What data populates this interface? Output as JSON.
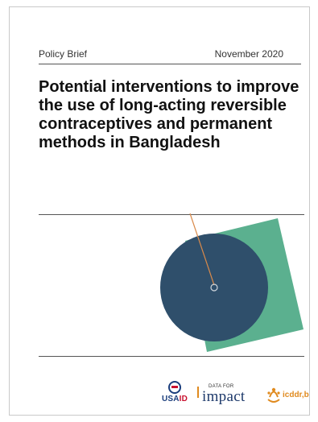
{
  "header": {
    "series_label": "Policy Brief",
    "date": "November 2020"
  },
  "title": "Potential interventions to improve the use of long-acting reversible contraceptives and permanent methods in Bangladesh",
  "graphic": {
    "square_color": "#5bb08f",
    "circle_color": "#2f4f6b",
    "line_color": "#d98a4a",
    "center_ring_color": "#cfd6dc"
  },
  "logos": {
    "usaid": {
      "us": "USA",
      "id": "ID"
    },
    "data_for_impact": {
      "small": "DATA FOR",
      "big": "impact"
    },
    "icddrb": "icddr,b"
  }
}
